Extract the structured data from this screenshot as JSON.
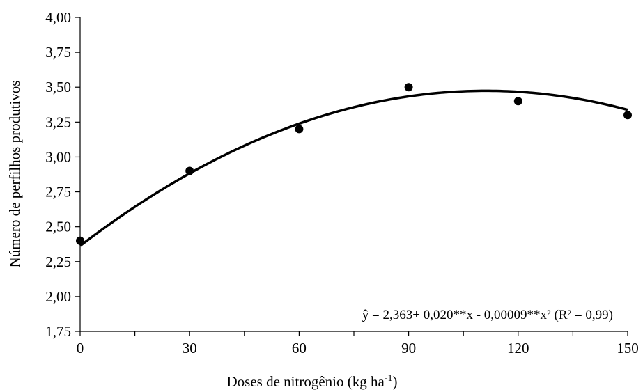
{
  "chart_data": {
    "type": "scatter",
    "title": "",
    "xlabel": "Doses de nitrogênio (kg ha",
    "xlabel_sup": "-1",
    "xlabel_close": ")",
    "ylabel": "Número de perfilhos produtivos",
    "xlim": [
      0,
      150
    ],
    "ylim": [
      1.75,
      4.0
    ],
    "x_ticks": [
      0,
      30,
      60,
      90,
      120,
      150
    ],
    "x_tick_labels": [
      "0",
      "30",
      "60",
      "90",
      "120",
      "150"
    ],
    "y_ticks": [
      1.75,
      2.0,
      2.25,
      2.5,
      2.75,
      3.0,
      3.25,
      3.5,
      3.75,
      4.0
    ],
    "y_tick_labels": [
      "1,75",
      "2,00",
      "2,25",
      "2,50",
      "2,75",
      "3,00",
      "3,25",
      "3,50",
      "3,75",
      "4,00"
    ],
    "grid": false,
    "series": [
      {
        "x": [
          0,
          30,
          60,
          90,
          120,
          150
        ],
        "y": [
          2.4,
          2.9,
          3.2,
          3.5,
          3.4,
          3.3
        ],
        "marker": "circle",
        "color": "#000000"
      }
    ],
    "fit": {
      "type": "quadratic",
      "coefficients": [
        2.363,
        0.02,
        -9e-05
      ],
      "color": "#000000",
      "equation_text": "ŷ = 2,363+ 0,020**x - 0,00009**x² (R² = 0,99)"
    }
  }
}
